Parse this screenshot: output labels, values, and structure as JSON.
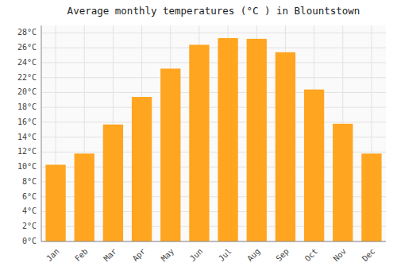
{
  "chart_data": {
    "type": "bar",
    "title": "Average monthly temperatures (°C ) in Blountstown",
    "categories": [
      "Jan",
      "Feb",
      "Mar",
      "Apr",
      "May",
      "Jun",
      "Jul",
      "Aug",
      "Sep",
      "Oct",
      "Nov",
      "Dec"
    ],
    "values": [
      10.3,
      11.8,
      15.7,
      19.4,
      23.2,
      26.4,
      27.3,
      27.2,
      25.4,
      20.4,
      15.8,
      11.8
    ],
    "color": "#FFA520",
    "ylim": [
      0,
      29
    ],
    "yticks": [
      {
        "value": 0,
        "label": "0°C"
      },
      {
        "value": 2,
        "label": "2°C"
      },
      {
        "value": 4,
        "label": "4°C"
      },
      {
        "value": 6,
        "label": "6°C"
      },
      {
        "value": 8,
        "label": "8°C"
      },
      {
        "value": 10,
        "label": "10°C"
      },
      {
        "value": 12,
        "label": "12°C"
      },
      {
        "value": 14,
        "label": "14°C"
      },
      {
        "value": 16,
        "label": "16°C"
      },
      {
        "value": 18,
        "label": "18°C"
      },
      {
        "value": 20,
        "label": "20°C"
      },
      {
        "value": 22,
        "label": "22°C"
      },
      {
        "value": 24,
        "label": "24°C"
      },
      {
        "value": 26,
        "label": "26°C"
      },
      {
        "value": 28,
        "label": "28°C"
      }
    ],
    "grid": true
  }
}
